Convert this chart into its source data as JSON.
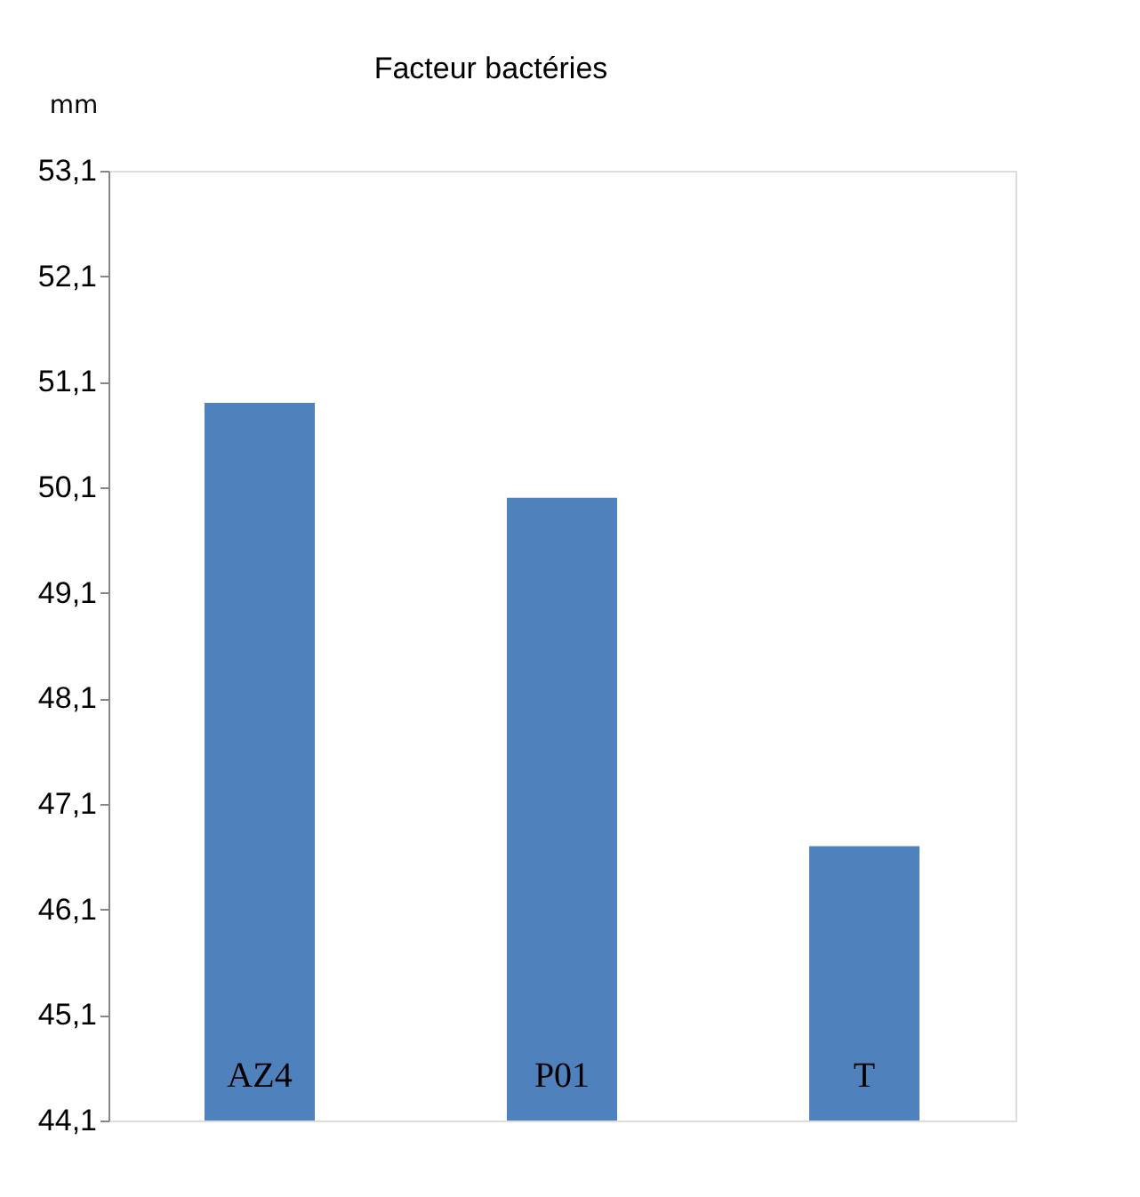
{
  "chart_data": {
    "type": "bar",
    "title": "Facteur bactéries",
    "ylabel": "mm",
    "categories": [
      "AZ4",
      "P01",
      "T"
    ],
    "values": [
      50.9,
      50.0,
      46.7
    ],
    "color": "#4f81bd",
    "ylim": [
      44.1,
      53.1
    ],
    "yticks": [
      {
        "value": 44.1,
        "label": "44,1"
      },
      {
        "value": 45.1,
        "label": "45,1"
      },
      {
        "value": 46.1,
        "label": "46,1"
      },
      {
        "value": 47.1,
        "label": "47,1"
      },
      {
        "value": 48.1,
        "label": "48,1"
      },
      {
        "value": 49.1,
        "label": "49,1"
      },
      {
        "value": 50.1,
        "label": "50,1"
      },
      {
        "value": 51.1,
        "label": "51,1"
      },
      {
        "value": 52.1,
        "label": "52,1"
      },
      {
        "value": 53.1,
        "label": "53,1"
      }
    ],
    "grid": false
  }
}
